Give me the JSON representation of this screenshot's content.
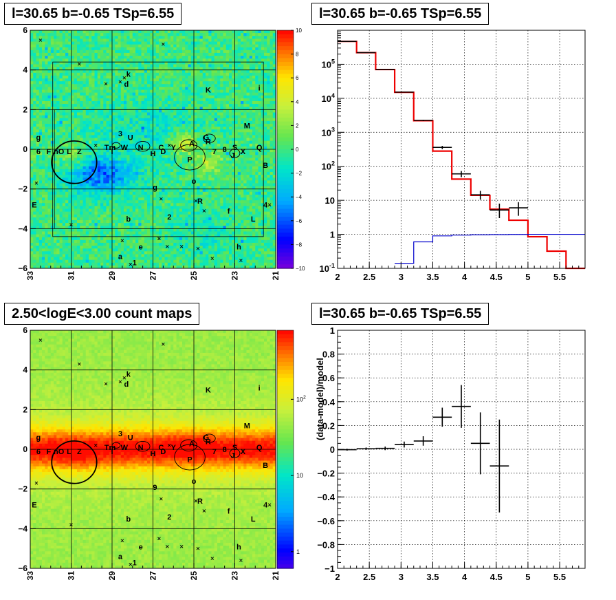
{
  "titles": {
    "top_left": "l=30.65 b=-0.65 TSp=6.55",
    "top_right": "l=30.65 b=-0.65 TSp=6.55",
    "bottom_left": "2.50<logE<3.00 count maps",
    "bottom_right": "l=30.65 b=-0.65 TSp=6.55"
  },
  "chart_data": [
    {
      "id": "residual_map",
      "type": "heatmap",
      "title": "l=30.65 b=-0.65 TSp=6.55",
      "xlim": [
        33,
        21
      ],
      "ylim": [
        -6,
        6
      ],
      "x_ticks": [
        "33",
        "31",
        "29",
        "27",
        "25",
        "23",
        "21"
      ],
      "y_ticks": [
        "6",
        "4",
        "2",
        "0",
        "−2",
        "−4",
        "−6"
      ],
      "colorbar": {
        "min": -10,
        "max": 10,
        "ticks": [
          "10",
          "8",
          "6",
          "4",
          "2",
          "0",
          "−2",
          "−4",
          "−6",
          "−8",
          "−10"
        ]
      },
      "grid": true,
      "source_labels": [
        "k",
        "d",
        "K",
        "i",
        "M",
        "g",
        "3",
        "U",
        "6",
        "F",
        "nO",
        "L",
        "Z",
        "Tm",
        "W",
        "I",
        "N",
        "H",
        "C",
        "D",
        "Y",
        "A",
        "G",
        "R",
        "7",
        "8",
        "S",
        "X",
        "Q",
        "J",
        "P",
        "B",
        "o",
        "E",
        "2",
        "b",
        "f",
        "4",
        "L",
        "e",
        "h",
        "a",
        "1",
        "9"
      ]
    },
    {
      "id": "spectrum",
      "type": "line",
      "title": "l=30.65 b=-0.65 TSp=6.55",
      "xlim": [
        2,
        5.9
      ],
      "ylim": [
        0.1,
        1000000
      ],
      "y_scale": "log",
      "x_ticks": [
        "2",
        "2.5",
        "3",
        "3.5",
        "4",
        "4.5",
        "5",
        "5.5"
      ],
      "y_ticks": [
        "10^5",
        "10^4",
        "10^3",
        "10^2",
        "10",
        "1",
        "10^-1"
      ],
      "grid": true,
      "series": [
        {
          "color": "#ee0000",
          "kind": "step",
          "edges": [
            2.0,
            2.3,
            2.6,
            2.9,
            3.2,
            3.5,
            3.8,
            4.1,
            4.4,
            4.7,
            5.0,
            5.3,
            5.6,
            5.9
          ],
          "values": [
            470000,
            220000,
            70000,
            15000,
            2200,
            280,
            42,
            14,
            5.5,
            2.6,
            0.85,
            0.32,
            0.1
          ]
        },
        {
          "color": "#0000cc",
          "kind": "step",
          "edges": [
            2.9,
            3.2,
            3.5,
            3.8,
            4.1,
            4.4,
            4.7,
            5.0,
            5.3,
            5.6,
            5.9
          ],
          "values": [
            0.14,
            0.6,
            0.9,
            0.95,
            0.97,
            0.98,
            0.99,
            1.0,
            1.0,
            1.0
          ]
        },
        {
          "color": "#000000",
          "kind": "points",
          "points": [
            {
              "x": 2.15,
              "y": 470000,
              "xerr": 0.15,
              "lo": 460000,
              "hi": 480000
            },
            {
              "x": 2.45,
              "y": 220000,
              "xerr": 0.15,
              "lo": 215000,
              "hi": 225000
            },
            {
              "x": 2.75,
              "y": 70000,
              "xerr": 0.15,
              "lo": 68000,
              "hi": 72000
            },
            {
              "x": 3.05,
              "y": 15200,
              "xerr": 0.15,
              "lo": 14900,
              "hi": 15500
            },
            {
              "x": 3.35,
              "y": 2250,
              "xerr": 0.15,
              "lo": 2150,
              "hi": 2350
            },
            {
              "x": 3.65,
              "y": 360,
              "xerr": 0.15,
              "lo": 320,
              "hi": 400
            },
            {
              "x": 3.95,
              "y": 60,
              "xerr": 0.15,
              "lo": 48,
              "hi": 73
            },
            {
              "x": 4.25,
              "y": 14.5,
              "xerr": 0.15,
              "lo": 10.5,
              "hi": 19
            },
            {
              "x": 4.55,
              "y": 5.2,
              "xerr": 0.15,
              "lo": 3.0,
              "hi": 8.0
            },
            {
              "x": 4.85,
              "y": 6.0,
              "xerr": 0.15,
              "lo": 3.5,
              "hi": 8.8
            }
          ]
        }
      ]
    },
    {
      "id": "count_map",
      "type": "heatmap",
      "title": "2.50<logE<3.00 count maps",
      "xlim": [
        33,
        21
      ],
      "ylim": [
        -6,
        6
      ],
      "x_ticks": [
        "33",
        "31",
        "29",
        "27",
        "25",
        "23",
        "21"
      ],
      "y_ticks": [
        "6",
        "4",
        "2",
        "0",
        "−2",
        "−4",
        "−6"
      ],
      "colorbar": {
        "scale": "log",
        "ticks": [
          "10^2",
          "10",
          "1"
        ]
      },
      "grid": true
    },
    {
      "id": "residuals",
      "type": "scatter",
      "title": "l=30.65 b=-0.65 TSp=6.55",
      "ylabel": "(data-model)/model",
      "xlim": [
        2,
        5.9
      ],
      "ylim": [
        -1,
        1
      ],
      "x_ticks": [
        "2",
        "2.5",
        "3",
        "3.5",
        "4",
        "4.5",
        "5",
        "5.5"
      ],
      "y_ticks": [
        "1",
        "0.8",
        "0.6",
        "0.4",
        "0.2",
        "0",
        "−0.2",
        "−0.4",
        "−0.6",
        "−0.8",
        "−1"
      ],
      "grid": true,
      "points": [
        {
          "x": 2.15,
          "y": -0.003,
          "xerr": 0.15,
          "err": 0.008
        },
        {
          "x": 2.45,
          "y": 0.005,
          "xerr": 0.15,
          "err": 0.01
        },
        {
          "x": 2.75,
          "y": 0.008,
          "xerr": 0.15,
          "err": 0.015
        },
        {
          "x": 3.05,
          "y": 0.04,
          "xerr": 0.15,
          "err": 0.025
        },
        {
          "x": 3.35,
          "y": 0.07,
          "xerr": 0.15,
          "err": 0.04
        },
        {
          "x": 3.65,
          "y": 0.27,
          "xerr": 0.15,
          "err": 0.08
        },
        {
          "x": 3.95,
          "y": 0.36,
          "xerr": 0.15,
          "err": 0.18
        },
        {
          "x": 4.25,
          "y": 0.05,
          "xerr": 0.15,
          "err": 0.26
        },
        {
          "x": 4.55,
          "y": -0.14,
          "xerr": 0.15,
          "err": 0.39
        }
      ]
    }
  ]
}
